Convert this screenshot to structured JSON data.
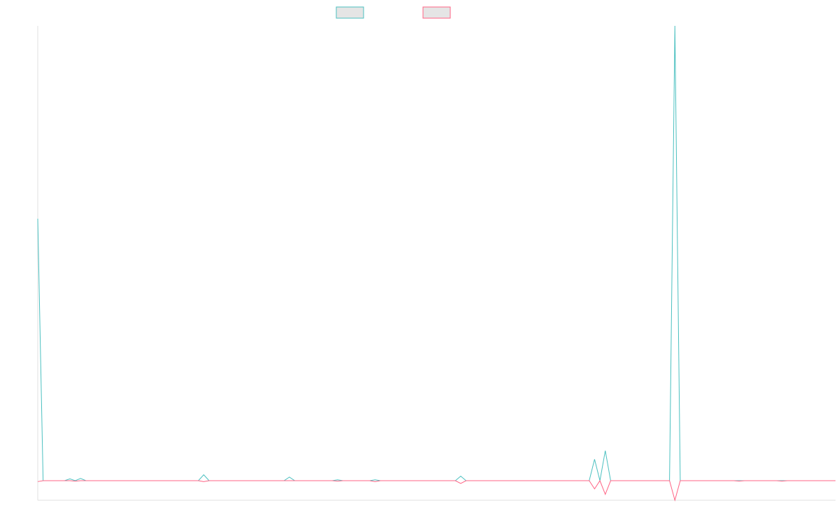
{
  "chart_data": {
    "type": "line",
    "series": [
      {
        "color": "#4bc0c0",
        "values": [
          57.6,
          0,
          0,
          0,
          0,
          0,
          0.4,
          0,
          0.5,
          0,
          0,
          0,
          0,
          0,
          0,
          0,
          0,
          0,
          0,
          0,
          0,
          0,
          0,
          0,
          0,
          0,
          0,
          0,
          0,
          0,
          0,
          1.3,
          0,
          0,
          0,
          0,
          0,
          0,
          0,
          0,
          0,
          0,
          0,
          0,
          0,
          0,
          0,
          0.8,
          0,
          0,
          0,
          0,
          0,
          0,
          0,
          0,
          0.2,
          0,
          0,
          0,
          0,
          0,
          0,
          0.2,
          0,
          0,
          0,
          0,
          0,
          0,
          0,
          0,
          0,
          0,
          0,
          0,
          0,
          0,
          0,
          1.0,
          0,
          0,
          0,
          0,
          0,
          0,
          0,
          0,
          0,
          0,
          0,
          0,
          0,
          0,
          0,
          0,
          0,
          0,
          0,
          0,
          0,
          0,
          0,
          0,
          4.7,
          0,
          6.6,
          0,
          0,
          0,
          0,
          0,
          0,
          0,
          0,
          0,
          0,
          0,
          0,
          100,
          0,
          0,
          0,
          0,
          0,
          0,
          0,
          0,
          0,
          0,
          0,
          0,
          0,
          0,
          0,
          0,
          0,
          0,
          0,
          0,
          0,
          0,
          0,
          0,
          0,
          0,
          0,
          0,
          0,
          0
        ]
      },
      {
        "color": "#ff6384",
        "values": [
          -0.2,
          0,
          0,
          0,
          0,
          0,
          0,
          -0.1,
          0,
          0,
          0,
          0,
          0,
          0,
          0,
          0,
          0,
          0,
          0,
          0,
          0,
          0,
          0,
          0,
          0,
          0,
          0,
          0,
          0,
          0,
          0,
          -0.2,
          0,
          0,
          0,
          0,
          0,
          0,
          0,
          0,
          0,
          0,
          0,
          0,
          0,
          0,
          0,
          0,
          0,
          0,
          0,
          0,
          0,
          0,
          0,
          0,
          -0.1,
          0,
          0,
          0,
          0,
          0,
          0,
          -0.2,
          0,
          0,
          0,
          0,
          0,
          0,
          0,
          0,
          0,
          0,
          0,
          0,
          0,
          0,
          0,
          -0.6,
          0,
          0,
          0,
          0,
          0,
          0,
          0,
          0,
          0,
          0,
          0,
          0,
          0,
          0,
          0,
          0,
          0,
          0,
          0,
          0,
          0,
          0,
          0,
          0,
          -1.8,
          0,
          -3.0,
          0,
          0,
          0,
          0,
          0,
          0,
          0,
          0,
          0,
          0,
          0,
          0,
          -4.3,
          0,
          0,
          0,
          0,
          0,
          0,
          0,
          0,
          0,
          0,
          0,
          -0.1,
          0,
          0,
          0,
          0,
          0,
          0,
          0,
          -0.1,
          0,
          0,
          0,
          0,
          0,
          0,
          0,
          0,
          0,
          0
        ]
      }
    ],
    "ylim": [
      -4.3,
      100
    ]
  }
}
